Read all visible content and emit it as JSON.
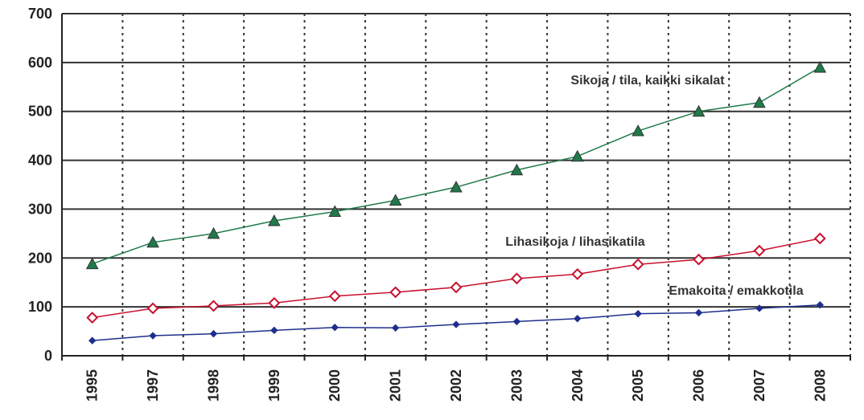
{
  "chart_data": {
    "type": "line",
    "categories": [
      "1995",
      "1997",
      "1998",
      "1999",
      "2000",
      "2001",
      "2002",
      "2003",
      "2004",
      "2005",
      "2006",
      "2007",
      "2008"
    ],
    "ylim": [
      0,
      700
    ],
    "yticks": [
      "0",
      "100",
      "200",
      "300",
      "400",
      "500",
      "600",
      "700"
    ],
    "grid": {
      "horizontal": "solid",
      "vertical": "dotted"
    },
    "series": [
      {
        "name": "Sikoja / tila, kaikki sikalat",
        "color": "#1f7a4a",
        "marker": "triangle",
        "values": [
          188,
          232,
          250,
          276,
          295,
          318,
          345,
          380,
          408,
          460,
          500,
          518,
          590
        ]
      },
      {
        "name": "Lihasikoja / lihasikatila",
        "color": "#c8102e",
        "marker": "diamond",
        "values": [
          78,
          97,
          102,
          108,
          122,
          130,
          140,
          158,
          167,
          187,
          197,
          215,
          240
        ]
      },
      {
        "name": "Emakoita / emakkotila",
        "color": "#1f2f8c",
        "marker": "diamond-small",
        "values": [
          31,
          41,
          45,
          52,
          58,
          57,
          64,
          70,
          76,
          86,
          88,
          97,
          104
        ]
      }
    ]
  }
}
